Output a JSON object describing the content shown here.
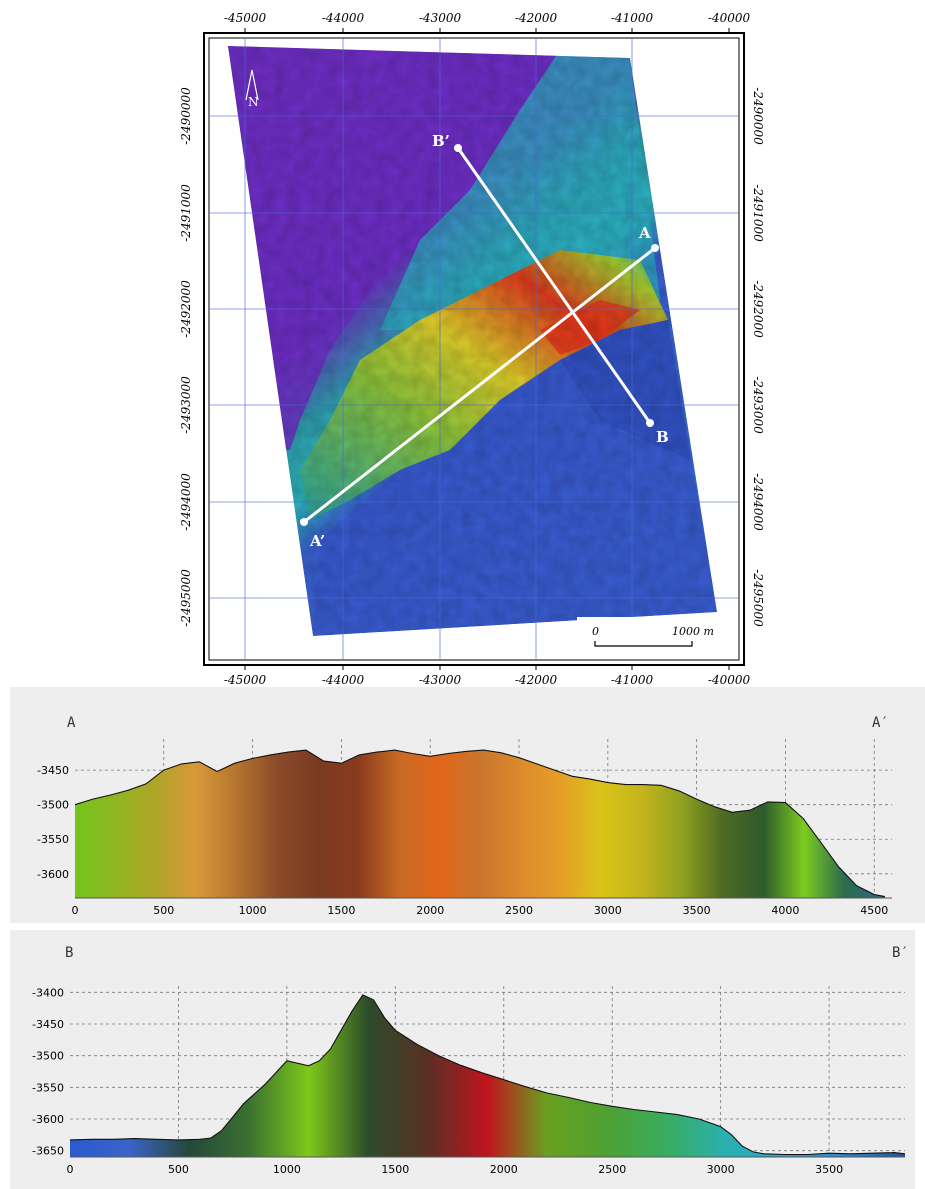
{
  "map": {
    "x_ticks": [
      "-45000",
      "-44000",
      "-43000",
      "-42000",
      "-41000",
      "-40000"
    ],
    "y_ticks": [
      "-2490000",
      "-2491000",
      "-2492000",
      "-2493000",
      "-2494000",
      "-2495000"
    ],
    "labels": {
      "A": "A",
      "A_prime": "A’",
      "B": "B",
      "B_prime": "B’"
    },
    "scale_bar": {
      "start": "0",
      "end": "1000 m"
    },
    "north_arrow": "N"
  },
  "chart_data": [
    {
      "type": "area",
      "end_labels": {
        "left": "A",
        "right": "A′"
      },
      "x_ticks": [
        "0",
        "500",
        "1000",
        "1500",
        "2000",
        "2500",
        "3000",
        "3500",
        "4000",
        "4500"
      ],
      "y_ticks": [
        "-3450",
        "-3500",
        "-3550",
        "-3600"
      ],
      "xlim": [
        0,
        4600
      ],
      "ylim": [
        -3635,
        -3405
      ],
      "grid": true,
      "x": [
        0,
        100,
        200,
        300,
        400,
        500,
        600,
        700,
        800,
        900,
        1000,
        1100,
        1200,
        1300,
        1400,
        1500,
        1600,
        1700,
        1800,
        1900,
        2000,
        2100,
        2200,
        2300,
        2400,
        2500,
        2600,
        2700,
        2800,
        2900,
        3000,
        3100,
        3200,
        3300,
        3400,
        3500,
        3600,
        3700,
        3800,
        3900,
        4000,
        4100,
        4200,
        4300,
        4400,
        4500,
        4560
      ],
      "y": [
        -3500,
        -3492,
        -3486,
        -3479,
        -3470,
        -3450,
        -3441,
        -3438,
        -3452,
        -3440,
        -3433,
        -3428,
        -3424,
        -3421,
        -3437,
        -3440,
        -3428,
        -3424,
        -3421,
        -3426,
        -3430,
        -3426,
        -3423,
        -3421,
        -3425,
        -3432,
        -3441,
        -3450,
        -3459,
        -3463,
        -3468,
        -3471,
        -3471,
        -3472,
        -3480,
        -3492,
        -3503,
        -3511,
        -3508,
        -3496,
        -3497,
        -3520,
        -3555,
        -3590,
        -3617,
        -3630,
        -3633
      ],
      "fill_colors": [
        "#74c41c",
        "#8fb520",
        "#b0a428",
        "#d89838",
        "#b5742e",
        "#8b4a2a",
        "#7a3a20",
        "#8b3a1e",
        "#c86a24",
        "#e2661a",
        "#c9742c",
        "#dc8a2c",
        "#e69e28",
        "#d8c418",
        "#c4b41c",
        "#8fa020",
        "#4e6a22",
        "#2e5a2c",
        "#7ccc20",
        "#2c6a4e",
        "#2e6a86"
      ]
    },
    {
      "type": "area",
      "end_labels": {
        "left": "B",
        "right": "B′"
      },
      "x_ticks": [
        "0",
        "500",
        "1000",
        "1500",
        "2000",
        "2500",
        "3000",
        "3500"
      ],
      "y_ticks": [
        "-3400",
        "-3450",
        "-3500",
        "-3550",
        "-3600",
        "-3650"
      ],
      "xlim": [
        0,
        3850
      ],
      "ylim": [
        -3660,
        -3390
      ],
      "grid": true,
      "x": [
        0,
        100,
        200,
        300,
        400,
        500,
        600,
        650,
        700,
        750,
        800,
        900,
        1000,
        1100,
        1150,
        1200,
        1250,
        1300,
        1350,
        1400,
        1450,
        1500,
        1600,
        1700,
        1800,
        1900,
        2000,
        2100,
        2200,
        2300,
        2400,
        2500,
        2600,
        2700,
        2800,
        2900,
        3000,
        3050,
        3100,
        3150,
        3200,
        3300,
        3400,
        3500,
        3600,
        3700,
        3800,
        3850
      ],
      "y": [
        -3633,
        -3632,
        -3632,
        -3631,
        -3632,
        -3633,
        -3632,
        -3630,
        -3618,
        -3597,
        -3576,
        -3545,
        -3508,
        -3516,
        -3508,
        -3490,
        -3460,
        -3430,
        -3404,
        -3412,
        -3440,
        -3460,
        -3482,
        -3500,
        -3515,
        -3527,
        -3538,
        -3549,
        -3559,
        -3566,
        -3574,
        -3580,
        -3585,
        -3589,
        -3593,
        -3600,
        -3612,
        -3625,
        -3643,
        -3652,
        -3655,
        -3656,
        -3656,
        -3654,
        -3655,
        -3654,
        -3653,
        -3655
      ],
      "fill_colors": [
        "#2a5ad0",
        "#3a64c8",
        "#26483a",
        "#3a7030",
        "#7ec81a",
        "#2c4c2a",
        "#5a3024",
        "#c0141e",
        "#6aa020",
        "#4ea032",
        "#38ac60",
        "#2ab0b0",
        "#2aa6d0",
        "#3286c8",
        "#2454a0"
      ]
    }
  ]
}
